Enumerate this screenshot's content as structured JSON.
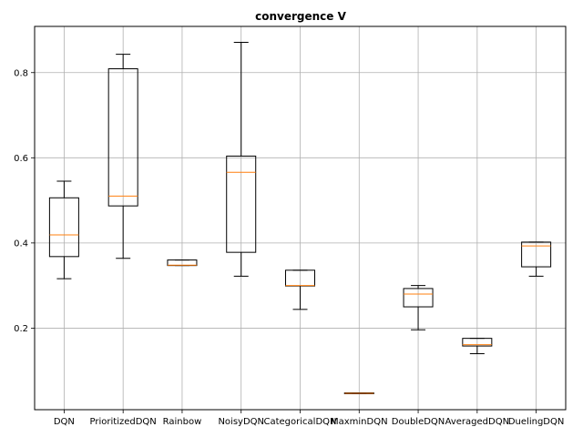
{
  "chart_data": {
    "type": "box",
    "title": "convergence V",
    "xlabel": "",
    "ylabel": "",
    "categories": [
      "DQN",
      "PrioritizedDQN",
      "Rainbow",
      "NoisyDQN",
      "CategoricalDQN",
      "MaxminDQN",
      "DoubleDQN",
      "AveragedDQN",
      "DuelingDQN"
    ],
    "boxes": [
      {
        "whisker_low": 0.316,
        "q1": 0.368,
        "median": 0.419,
        "q3": 0.506,
        "whisker_high": 0.545
      },
      {
        "whisker_low": 0.364,
        "q1": 0.487,
        "median": 0.51,
        "q3": 0.809,
        "whisker_high": 0.843
      },
      {
        "whisker_low": 0.347,
        "q1": 0.347,
        "median": 0.348,
        "q3": 0.36,
        "whisker_high": 0.36
      },
      {
        "whisker_low": 0.322,
        "q1": 0.378,
        "median": 0.566,
        "q3": 0.604,
        "whisker_high": 0.871
      },
      {
        "whisker_low": 0.244,
        "q1": 0.299,
        "median": 0.3,
        "q3": 0.336,
        "whisker_high": 0.336
      },
      {
        "whisker_low": 0.046,
        "q1": 0.046,
        "median": 0.047,
        "q3": 0.048,
        "whisker_high": 0.048
      },
      {
        "whisker_low": 0.196,
        "q1": 0.25,
        "median": 0.28,
        "q3": 0.293,
        "whisker_high": 0.3
      },
      {
        "whisker_low": 0.14,
        "q1": 0.158,
        "median": 0.161,
        "q3": 0.176,
        "whisker_high": 0.176
      },
      {
        "whisker_low": 0.322,
        "q1": 0.344,
        "median": 0.393,
        "q3": 0.402,
        "whisker_high": 0.402
      }
    ],
    "yticks": [
      0.2,
      0.4,
      0.6,
      0.8
    ],
    "ytick_labels": [
      "0.2",
      "0.4",
      "0.6",
      "0.8"
    ],
    "ylim": [
      0.0085,
      0.9085
    ],
    "grid": true,
    "colors": {
      "box": "#000000",
      "median": "#ff7f0e",
      "grid": "#b0b0b0"
    }
  }
}
